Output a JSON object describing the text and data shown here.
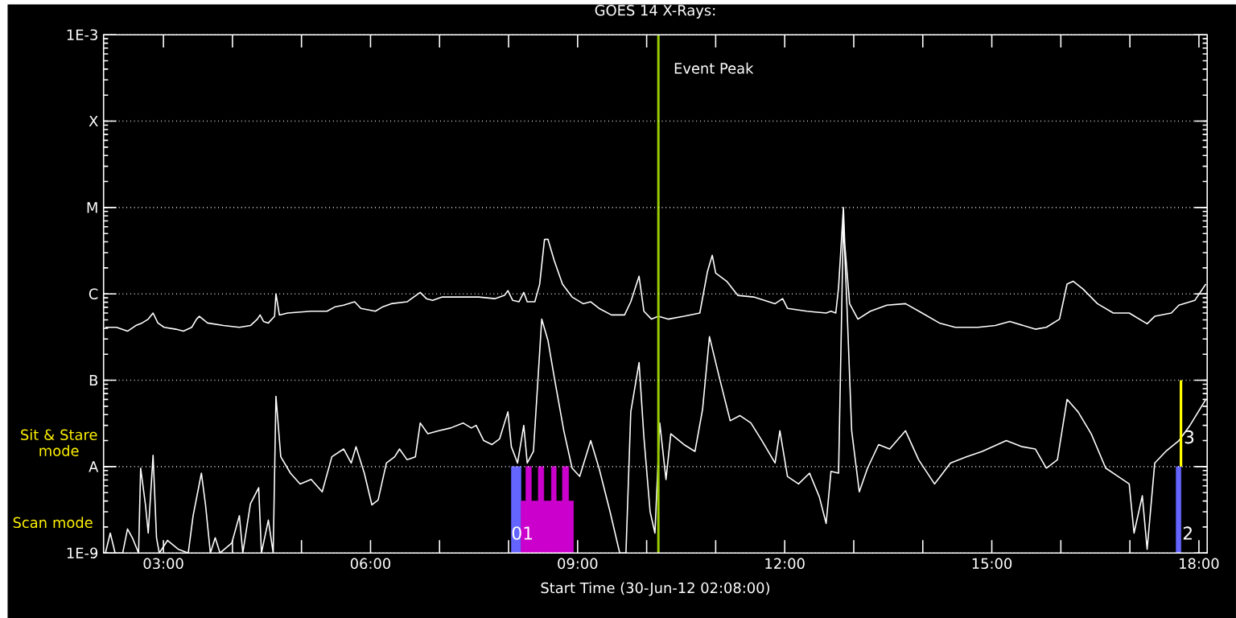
{
  "chart_data": {
    "type": "line",
    "title": "GOES 14 X-Rays:",
    "xlabel": "Start Time (30-Jun-12 02:08:00)",
    "xlim": [
      2.133,
      18.12
    ],
    "xticks": [
      {
        "value": 3,
        "label": "03:00"
      },
      {
        "value": 4,
        "label": null
      },
      {
        "value": 5,
        "label": null
      },
      {
        "value": 6,
        "label": "06:00"
      },
      {
        "value": 7,
        "label": null
      },
      {
        "value": 8,
        "label": null
      },
      {
        "value": 9,
        "label": "09:00"
      },
      {
        "value": 10,
        "label": null
      },
      {
        "value": 11,
        "label": null
      },
      {
        "value": 12,
        "label": "12:00"
      },
      {
        "value": 13,
        "label": null
      },
      {
        "value": 14,
        "label": null
      },
      {
        "value": 15,
        "label": "15:00"
      },
      {
        "value": 16,
        "label": null
      },
      {
        "value": 17,
        "label": null
      },
      {
        "value": 18,
        "label": "18:00"
      }
    ],
    "ylim": [
      1e-09,
      0.001
    ],
    "yticks": [
      {
        "value": 1e-09,
        "label": "1E-9"
      },
      {
        "value": 1e-08,
        "label": "A"
      },
      {
        "value": 1e-07,
        "label": "B"
      },
      {
        "value": 1e-06,
        "label": "C"
      },
      {
        "value": 1e-05,
        "label": "M"
      },
      {
        "value": 0.0001,
        "label": "X"
      },
      {
        "value": 0.001,
        "label": "1E-3"
      }
    ],
    "log": "y",
    "grid": "y",
    "marker": "none",
    "series": [
      {
        "color": "#ffffff",
        "x": [
          2.16,
          2.32,
          2.48,
          2.6,
          2.69,
          2.78,
          2.85,
          2.92,
          3.01,
          3.18,
          3.29,
          3.41,
          3.48,
          3.52,
          3.64,
          3.87,
          4.1,
          4.26,
          4.36,
          4.4,
          4.45,
          4.52,
          4.61,
          4.63,
          4.68,
          4.8,
          5.14,
          5.37,
          5.49,
          5.61,
          5.77,
          5.86,
          6.07,
          6.18,
          6.3,
          6.53,
          6.72,
          6.81,
          6.9,
          7.04,
          7.23,
          7.57,
          7.8,
          7.94,
          7.99,
          8.06,
          8.15,
          8.22,
          8.27,
          8.38,
          8.45,
          8.52,
          8.57,
          8.66,
          8.78,
          8.92,
          9.08,
          9.19,
          9.31,
          9.49,
          9.68,
          9.77,
          9.89,
          9.96,
          10.07,
          10.17,
          10.31,
          10.54,
          10.77,
          10.88,
          10.95,
          11.0,
          11.16,
          11.32,
          11.55,
          11.86,
          11.97,
          12.04,
          12.32,
          12.6,
          12.67,
          12.74,
          12.78,
          12.85,
          12.87,
          12.94,
          13.06,
          13.24,
          13.48,
          13.75,
          13.99,
          14.24,
          14.47,
          14.8,
          15.05,
          15.26,
          15.63,
          15.79,
          15.98,
          16.09,
          16.18,
          16.32,
          16.53,
          16.76,
          16.99,
          17.25,
          17.36,
          17.6,
          17.71,
          17.94,
          18.1
        ],
        "values": [
          4.1e-07,
          4.1e-07,
          3.7e-07,
          4.3e-07,
          4.6e-07,
          5.1e-07,
          6e-07,
          4.6e-07,
          4.1e-07,
          3.9e-07,
          3.7e-07,
          4.1e-07,
          5.1e-07,
          5.5e-07,
          4.6e-07,
          4.3e-07,
          4.1e-07,
          4.3e-07,
          5.1e-07,
          5.7e-07,
          4.8e-07,
          4.6e-07,
          5.5e-07,
          1e-06,
          5.7e-07,
          6e-07,
          6.3e-07,
          6.3e-07,
          7.1e-07,
          7.4e-07,
          8.1e-07,
          6.8e-07,
          6.3e-07,
          7.1e-07,
          7.7e-07,
          8.1e-07,
          1.04e-06,
          8.8e-07,
          8.4e-07,
          9.2e-07,
          9.2e-07,
          9.2e-07,
          8.8e-07,
          9.6e-07,
          1.09e-06,
          8.4e-07,
          8.1e-07,
          1.04e-06,
          8.1e-07,
          8.1e-07,
          1.29e-06,
          4.26e-06,
          4.3e-06,
          2.45e-06,
          1.3e-06,
          9.2e-07,
          7.7e-07,
          8.1e-07,
          6.8e-07,
          5.7e-07,
          5.7e-07,
          8.1e-07,
          1.6e-06,
          6.3e-07,
          5.1e-07,
          5.5e-07,
          5.1e-07,
          5.5e-07,
          6e-07,
          1.8e-06,
          2.8e-06,
          1.74e-06,
          1.4e-06,
          9.6e-07,
          9.2e-07,
          7.7e-07,
          8.8e-07,
          6.8e-07,
          6.3e-07,
          6e-07,
          6.3e-07,
          6e-07,
          1.19e-06,
          1e-05,
          3.75e-06,
          7.7e-07,
          5.1e-07,
          6.3e-07,
          7.4e-07,
          7.7e-07,
          6e-07,
          4.6e-07,
          4.1e-07,
          4.1e-07,
          4.3e-07,
          4.8e-07,
          3.9e-07,
          4.1e-07,
          5.1e-07,
          1.3e-06,
          1.4e-06,
          1.14e-06,
          7.7e-07,
          6e-07,
          6e-07,
          4.5e-07,
          5.5e-07,
          6e-07,
          7.4e-07,
          8.4e-07,
          1.3e-06
        ]
      },
      {
        "color": "#ffffff",
        "x": [
          2.16,
          2.23,
          2.3,
          2.41,
          2.48,
          2.55,
          2.64,
          2.67,
          2.74,
          2.78,
          2.85,
          2.9,
          2.94,
          3.06,
          3.22,
          3.36,
          3.43,
          3.55,
          3.61,
          3.68,
          3.75,
          3.82,
          3.99,
          4.1,
          4.15,
          4.26,
          4.38,
          4.42,
          4.52,
          4.59,
          4.63,
          4.7,
          4.84,
          4.98,
          5.14,
          5.3,
          5.44,
          5.61,
          5.72,
          5.79,
          5.91,
          6.02,
          6.11,
          6.23,
          6.35,
          6.42,
          6.53,
          6.65,
          6.72,
          6.83,
          6.99,
          7.16,
          7.34,
          7.46,
          7.53,
          7.64,
          7.76,
          7.87,
          7.99,
          8.04,
          8.13,
          8.22,
          8.27,
          8.36,
          8.48,
          8.57,
          8.66,
          8.8,
          8.92,
          9.03,
          9.19,
          9.31,
          9.47,
          9.61,
          9.7,
          9.77,
          9.89,
          9.96,
          10.05,
          10.12,
          10.19,
          10.28,
          10.35,
          10.54,
          10.7,
          10.81,
          10.91,
          11.05,
          11.21,
          11.35,
          11.51,
          11.67,
          11.86,
          11.93,
          12.04,
          12.2,
          12.36,
          12.5,
          12.6,
          12.67,
          12.78,
          12.85,
          12.9,
          12.97,
          13.08,
          13.2,
          13.36,
          13.52,
          13.75,
          13.94,
          14.17,
          14.4,
          14.63,
          14.86,
          15.21,
          15.44,
          15.63,
          15.79,
          15.95,
          16.09,
          16.25,
          16.44,
          16.65,
          16.83,
          16.99,
          17.06,
          17.18,
          17.25,
          17.36,
          17.52,
          17.71,
          17.87,
          18.1
        ],
        "values": [
          1e-09,
          1.7e-09,
          1e-09,
          1e-09,
          1.9e-09,
          1.5e-09,
          1e-09,
          9.6e-09,
          3.6e-09,
          1.7e-09,
          1.35e-08,
          1.5e-09,
          1e-09,
          1.4e-09,
          1.1e-09,
          1e-09,
          2.7e-09,
          8.4e-09,
          3.6e-09,
          1e-09,
          1.5e-09,
          1e-09,
          1.3e-09,
          2.7e-09,
          1e-09,
          3.7e-09,
          5.7e-09,
          1e-09,
          2.4e-09,
          1e-09,
          6.5e-08,
          1.3e-08,
          8.4e-09,
          6.3e-09,
          7.1e-09,
          5.1e-09,
          1.3e-08,
          1.6e-08,
          1.1e-08,
          1.7e-08,
          8.4e-09,
          3.6e-09,
          4.1e-09,
          1.1e-08,
          1.3e-08,
          1.6e-08,
          1.2e-08,
          1.3e-08,
          3.2e-08,
          2.4e-08,
          2.6e-08,
          2.8e-08,
          3.2e-08,
          2.8e-08,
          3e-08,
          2e-08,
          1.8e-08,
          2.1e-08,
          4.3e-08,
          1.7e-08,
          1.1e-08,
          3e-08,
          1.1e-08,
          1.5e-08,
          5.1e-07,
          2.9e-07,
          1.1e-07,
          2.6e-08,
          9.6e-09,
          7.7e-09,
          2e-08,
          9.6e-09,
          3e-09,
          1e-09,
          1e-09,
          4.3e-08,
          1.6e-07,
          2.2e-08,
          3e-09,
          1.7e-09,
          3.2e-08,
          7.1e-09,
          2.4e-08,
          1.8e-08,
          1.5e-08,
          4.6e-08,
          3.2e-07,
          1.1e-07,
          3.4e-08,
          3.9e-08,
          3.2e-08,
          2e-08,
          1.1e-08,
          2.6e-08,
          7.7e-09,
          6.3e-09,
          8.4e-09,
          4.5e-09,
          2.2e-09,
          8.8e-09,
          8.4e-09,
          7.1e-06,
          7.7e-07,
          2.6e-08,
          5.1e-09,
          9.6e-09,
          1.8e-08,
          1.6e-08,
          2.6e-08,
          1.2e-08,
          6.3e-09,
          1.1e-08,
          1.3e-08,
          1.5e-08,
          2e-08,
          1.7e-08,
          1.6e-08,
          9.6e-09,
          1.2e-08,
          6e-08,
          4.3e-08,
          2.4e-08,
          9.6e-09,
          7.7e-09,
          6.3e-09,
          1.7e-09,
          4.6e-09,
          1.1e-09,
          1.1e-08,
          1.5e-08,
          2e-08,
          3e-08,
          6e-08
        ]
      },
      {
        "type": "area",
        "color": "#6464ff",
        "x": [
          8.04,
          8.18
        ],
        "values": [
          1e-08,
          1e-08
        ]
      },
      {
        "type": "area",
        "color": "#cc00cc",
        "x": [
          8.18,
          8.25,
          8.33,
          8.43,
          8.51,
          8.62,
          8.69,
          8.78,
          8.87,
          8.94
        ],
        "values": [
          4e-09,
          1e-08,
          4e-09,
          1e-08,
          4e-09,
          1e-08,
          4e-09,
          1e-08,
          4e-09,
          4e-09
        ]
      },
      {
        "type": "area",
        "color": "#6464ff",
        "x": [
          17.67,
          17.74
        ],
        "values": [
          1e-08,
          1e-08
        ]
      },
      {
        "type": "line",
        "color": "#ffff00",
        "x": [
          17.74,
          17.74
        ],
        "values": [
          1e-08,
          1e-07
        ]
      }
    ],
    "ref_lines": [
      {
        "axis": "x",
        "value": 10.17,
        "label": "Event Peak",
        "color": "#99cc00"
      }
    ],
    "annotations": [
      "Sit & Stare mode",
      "Scan mode",
      {
        "text": "01",
        "x": 8.2,
        "y": 1.7e-09
      },
      {
        "text": "2",
        "x": 17.84,
        "y": 1.7e-09
      },
      {
        "text": "3",
        "x": 17.86,
        "y": 2.2e-08
      }
    ]
  }
}
